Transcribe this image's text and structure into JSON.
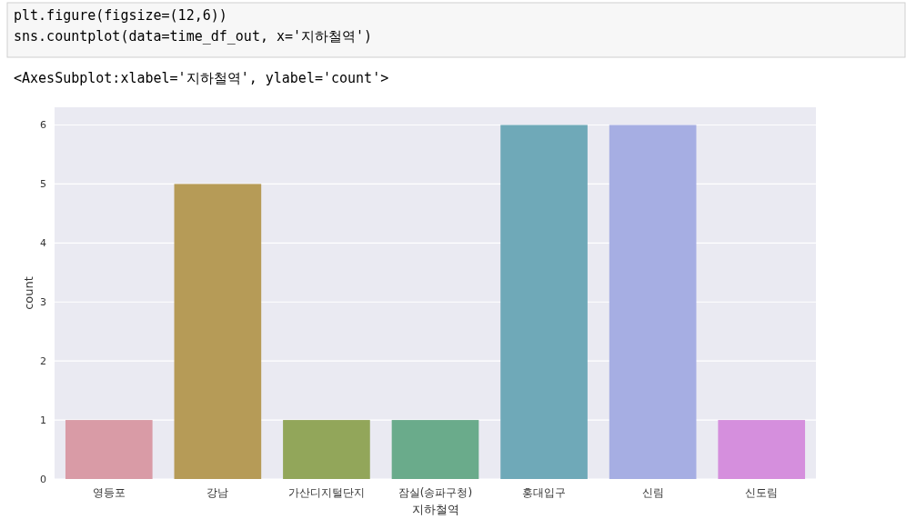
{
  "chart_data": {
    "type": "bar",
    "xlabel": "지하철역",
    "ylabel": "count",
    "annotations": [
      "plt.figure(figsize=(12,6))",
      "sns.countplot(data=time_df_out, x='지하철역')",
      "<AxesSubplot:xlabel='지하철역', ylabel='count'>"
    ],
    "categories": [
      "영등포",
      "강남",
      "가산디지털단지",
      "잠실(송파구청)",
      "홍대입구",
      "신림",
      "신도림"
    ],
    "values": [
      1,
      5,
      1,
      1,
      6,
      6,
      1
    ],
    "colors": [
      "#d99ba6",
      "#b69b57",
      "#92a65a",
      "#6aab8b",
      "#6fa9b8",
      "#a6aee3",
      "#d58fdd"
    ],
    "ylim": [
      0,
      6.3
    ],
    "yticks": [
      0,
      1,
      2,
      3,
      4,
      5,
      6
    ],
    "grid": "y"
  }
}
